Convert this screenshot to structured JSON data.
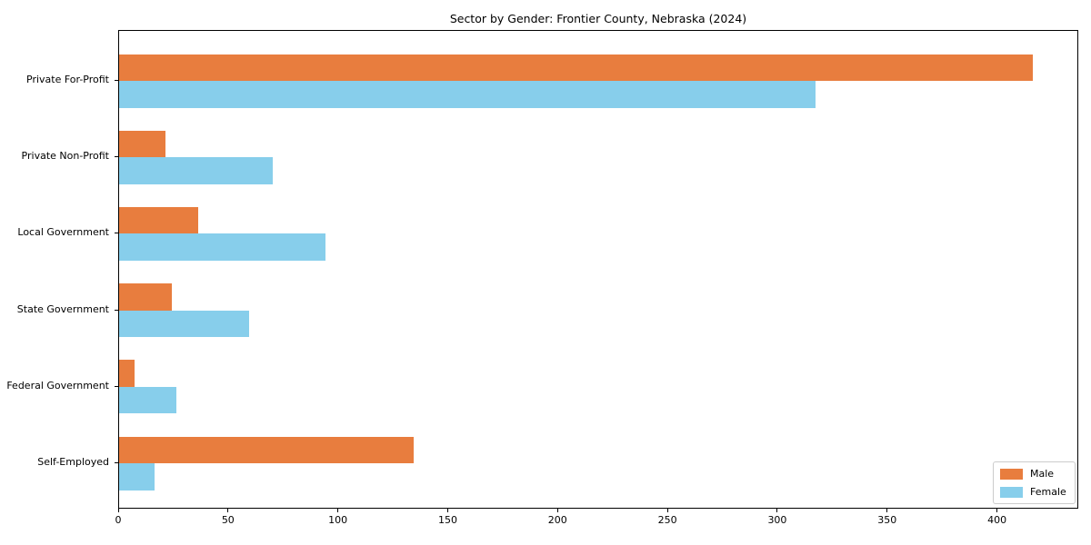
{
  "title": "Sector by Gender: Frontier County, Nebraska (2024)",
  "chart_data": {
    "type": "bar",
    "orientation": "horizontal",
    "title": "Sector by Gender: Frontier County, Nebraska (2024)",
    "xlabel": "",
    "ylabel": "",
    "categories": [
      "Private For-Profit",
      "Private Non-Profit",
      "Local Government",
      "State Government",
      "Federal Government",
      "Self-Employed"
    ],
    "series": [
      {
        "name": "Male",
        "color": "#e87d3e",
        "values": [
          416,
          21,
          36,
          24,
          7,
          134
        ]
      },
      {
        "name": "Female",
        "color": "#87ceeb",
        "values": [
          317,
          70,
          94,
          59,
          26,
          16
        ]
      }
    ],
    "xlim": [
      0,
      437
    ],
    "xticks": [
      0,
      50,
      100,
      150,
      200,
      250,
      300,
      350,
      400
    ],
    "grid": false,
    "legend_position": "lower right",
    "background": "#ffffff",
    "spine_color": "#000000"
  },
  "legend": {
    "items": [
      {
        "label": "Male",
        "color": "#e87d3e"
      },
      {
        "label": "Female",
        "color": "#87ceeb"
      }
    ]
  }
}
